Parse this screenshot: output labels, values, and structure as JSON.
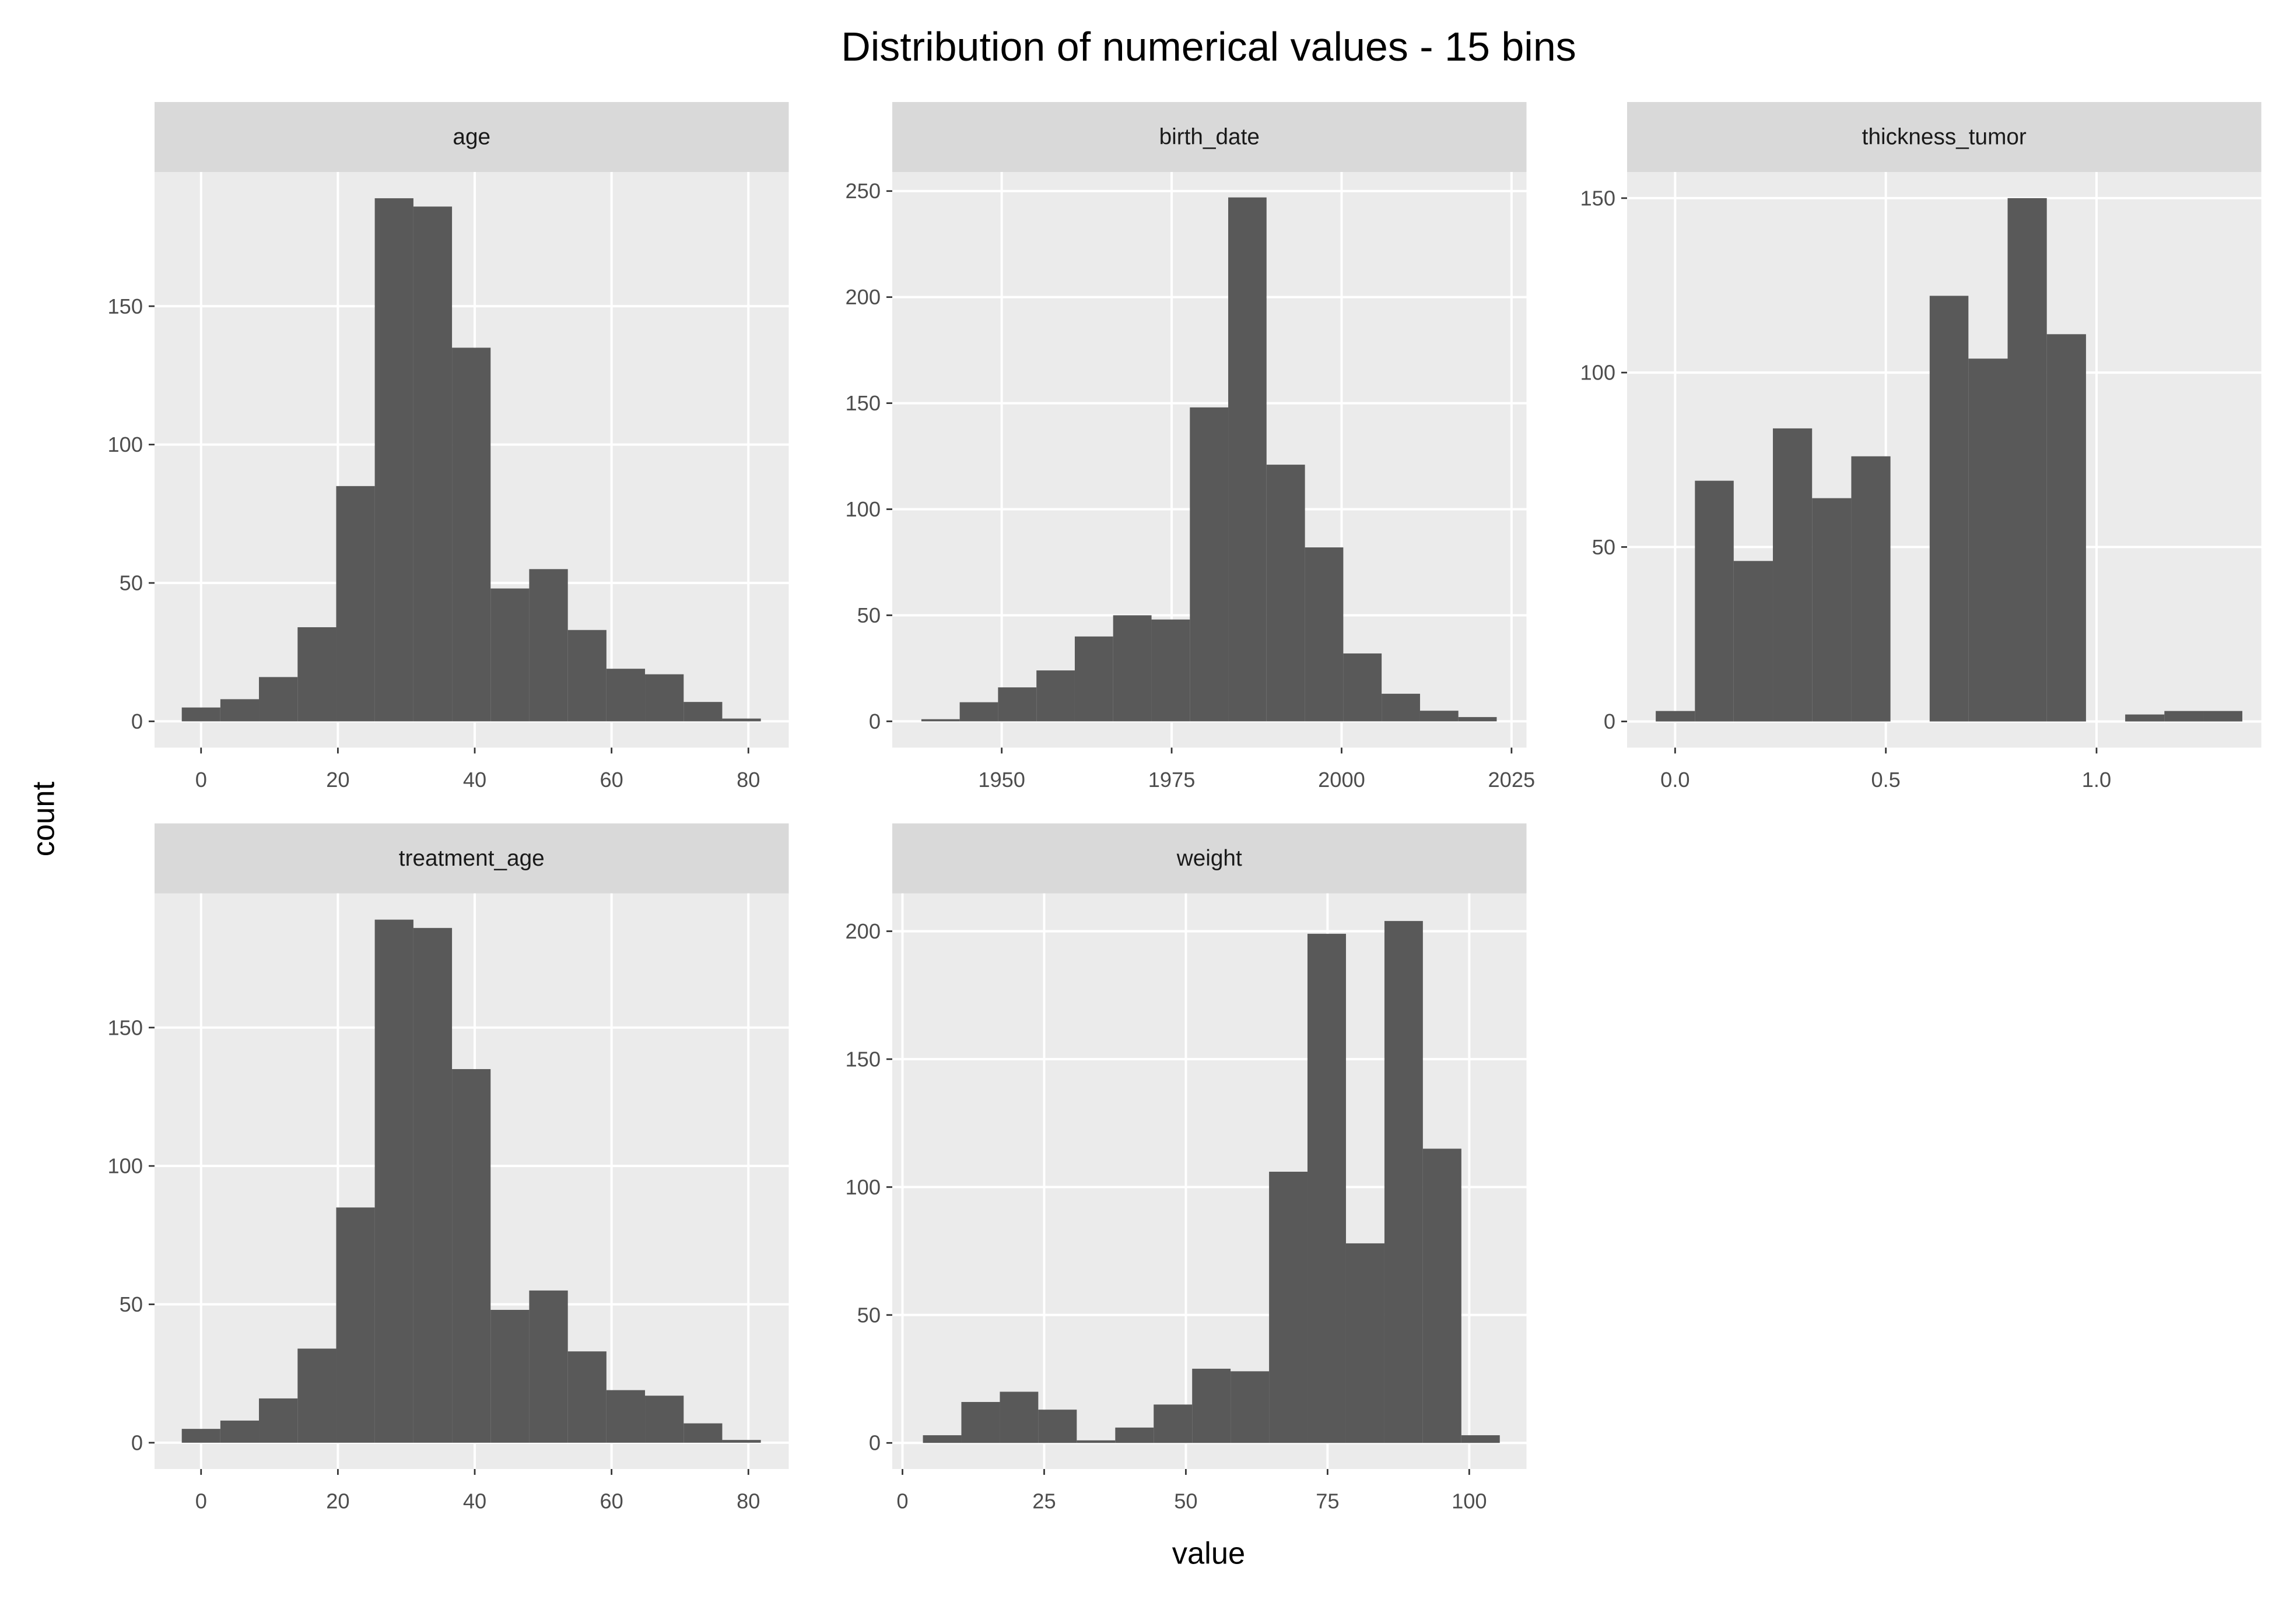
{
  "title": "Distribution of numerical values - 15 bins",
  "x_label": "value",
  "y_label": "count",
  "chart_data": [
    {
      "type": "histogram",
      "title": "age",
      "color": "#595959",
      "grid": true,
      "bins": [
        -2.82,
        2.82,
        8.46,
        14.11,
        19.75,
        25.39,
        31.04,
        36.68,
        42.32,
        47.96,
        53.61,
        59.25,
        64.89,
        70.54,
        76.18,
        81.82
      ],
      "values": [
        5,
        8,
        16,
        34,
        85,
        189,
        186,
        135,
        48,
        55,
        33,
        19,
        17,
        7,
        1
      ],
      "xlim": [
        -6.8,
        85.9
      ],
      "xticks": [
        0,
        20,
        40,
        60,
        80
      ],
      "ylim": [
        -9.5,
        198.5
      ],
      "yticks": [
        0,
        50,
        100,
        150
      ]
    },
    {
      "type": "histogram",
      "title": "birth_date",
      "color": "#595959",
      "grid": true,
      "bins": [
        1938.18,
        1943.82,
        1949.46,
        1955.11,
        1960.75,
        1966.39,
        1972.04,
        1977.68,
        1983.32,
        1988.96,
        1994.61,
        2000.25,
        2005.89,
        2011.54,
        2017.18,
        2022.82
      ],
      "values": [
        1,
        9,
        16,
        24,
        40,
        50,
        48,
        148,
        247,
        121,
        82,
        32,
        13,
        5,
        2
      ],
      "xlim": [
        1933.9,
        2027.2
      ],
      "xticks": [
        1950,
        1975,
        2000,
        2025
      ],
      "ylim": [
        -12.4,
        259
      ],
      "yticks": [
        0,
        50,
        100,
        150,
        200,
        250
      ]
    },
    {
      "type": "histogram",
      "title": "thickness_tumor",
      "color": "#595959",
      "grid": true,
      "bins": [
        -0.046,
        0.047,
        0.139,
        0.232,
        0.325,
        0.418,
        0.511,
        0.604,
        0.696,
        0.789,
        0.882,
        0.975,
        1.068,
        1.161,
        1.254,
        1.346
      ],
      "values": [
        3,
        69,
        46,
        84,
        64,
        76,
        0,
        122,
        104,
        150,
        111,
        0,
        2,
        3,
        3
      ],
      "xlim": [
        -0.114,
        1.391
      ],
      "xticks": [
        {
          "value": 0,
          "label": "0.0"
        },
        0.5,
        {
          "value": 1,
          "label": "1.0"
        }
      ],
      "ylim": [
        -7.5,
        157.5
      ],
      "yticks": [
        0,
        50,
        100,
        150
      ]
    },
    {
      "type": "histogram",
      "title": "treatment_age",
      "color": "#595959",
      "grid": true,
      "bins": [
        -2.82,
        2.82,
        8.46,
        14.11,
        19.75,
        25.39,
        31.04,
        36.68,
        42.32,
        47.96,
        53.61,
        59.25,
        64.89,
        70.54,
        76.18,
        81.82
      ],
      "values": [
        5,
        8,
        16,
        34,
        85,
        189,
        186,
        135,
        48,
        55,
        33,
        19,
        17,
        7,
        1
      ],
      "xlim": [
        -6.8,
        85.9
      ],
      "xticks": [
        0,
        20,
        40,
        60,
        80
      ],
      "ylim": [
        -9.5,
        198.5
      ],
      "yticks": [
        0,
        50,
        100,
        150
      ]
    },
    {
      "type": "histogram",
      "title": "weight",
      "color": "#595959",
      "grid": true,
      "bins": [
        3.61,
        10.39,
        17.18,
        23.96,
        30.75,
        37.54,
        44.32,
        51.11,
        57.89,
        64.68,
        71.46,
        78.25,
        85.04,
        91.82,
        98.61,
        105.39
      ],
      "values": [
        3,
        16,
        20,
        13,
        1,
        6,
        15,
        29,
        28,
        106,
        199,
        78,
        204,
        115,
        3
      ],
      "xlim": [
        -1.8,
        110.1
      ],
      "xticks": [
        0,
        25,
        50,
        75,
        100
      ],
      "ylim": [
        -10.2,
        214.8
      ],
      "yticks": [
        0,
        50,
        100,
        150,
        200
      ]
    }
  ]
}
